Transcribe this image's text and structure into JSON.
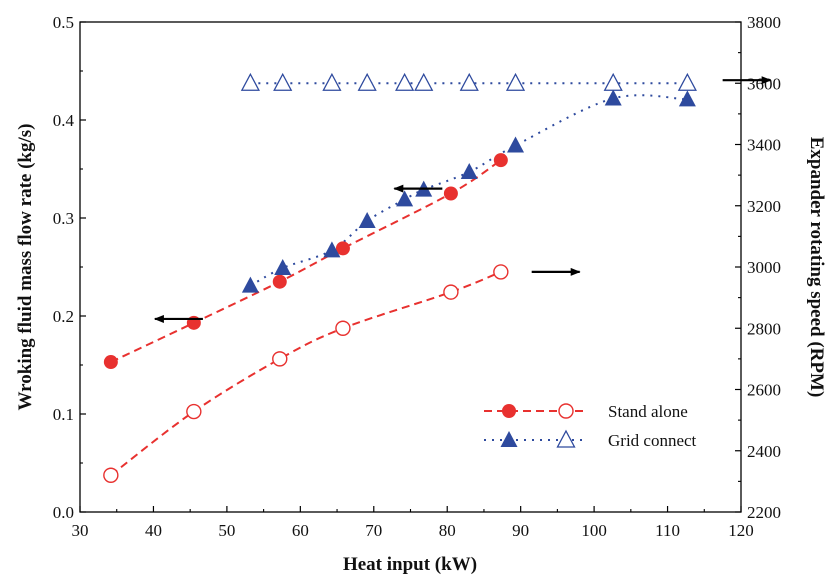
{
  "chart_data": {
    "type": "scatter",
    "xlabel": "Heat input (kW)",
    "ylabel_left": "Wroking fluid mass flow rate (kg/s)",
    "ylabel_right": "Expander rotating speed (RPM)",
    "xlim": [
      30,
      120
    ],
    "ylim_left": [
      0.0,
      0.5
    ],
    "ylim_right": [
      2200,
      3800
    ],
    "x_ticks": [
      "30",
      "40",
      "50",
      "60",
      "70",
      "80",
      "90",
      "100",
      "110",
      "120"
    ],
    "y_left_ticks": [
      "0.0",
      "0.1",
      "0.2",
      "0.3",
      "0.4",
      "0.5"
    ],
    "y_right_ticks": [
      "2200",
      "2400",
      "2600",
      "2800",
      "3000",
      "3200",
      "3400",
      "3600",
      "3800"
    ],
    "grid": false,
    "legend_position": "bottom-right",
    "legend": [
      {
        "label": "Stand alone",
        "line": "dashed",
        "color": "#e8312f"
      },
      {
        "label": "Grid connect",
        "line": "dotted",
        "color": "#2e4a9e"
      }
    ],
    "series": [
      {
        "group": "Stand alone",
        "axis": "left",
        "marker": "filled-circle",
        "color": "#e8312f",
        "line": "dashed",
        "x": [
          34.2,
          45.5,
          57.2,
          65.8,
          80.5,
          87.3
        ],
        "y": [
          0.153,
          0.193,
          0.235,
          0.269,
          0.325,
          0.359
        ]
      },
      {
        "group": "Stand alone",
        "axis": "right",
        "marker": "open-circle",
        "color": "#e8312f",
        "line": "dashed",
        "x": [
          34.2,
          45.5,
          57.2,
          65.8,
          80.5,
          87.3
        ],
        "y": [
          2320,
          2528,
          2700,
          2800,
          2918,
          2984
        ]
      },
      {
        "group": "Grid connect",
        "axis": "left",
        "marker": "filled-triangle",
        "color": "#2e4a9e",
        "line": "dotted",
        "x": [
          53.2,
          57.6,
          64.3,
          69.1,
          74.2,
          76.8,
          83.0,
          89.3,
          102.6,
          112.7
        ],
        "y": [
          0.231,
          0.249,
          0.267,
          0.297,
          0.319,
          0.329,
          0.347,
          0.374,
          0.422,
          0.421
        ]
      },
      {
        "group": "Grid connect",
        "axis": "right",
        "marker": "open-triangle",
        "color": "#2e4a9e",
        "line": "dotted",
        "x": [
          53.2,
          57.6,
          64.3,
          69.1,
          74.2,
          76.8,
          83.0,
          89.3,
          102.6,
          112.7
        ],
        "y": [
          3600,
          3600,
          3600,
          3600,
          3600,
          3600,
          3600,
          3600,
          3600,
          3600
        ]
      }
    ],
    "annotations": [
      {
        "type": "arrow",
        "points_to": "left-axis",
        "x": 40.2,
        "y": 0.197
      },
      {
        "type": "arrow",
        "points_to": "left-axis",
        "x": 72.8,
        "y": 0.33
      },
      {
        "type": "arrow",
        "points_to": "right-axis",
        "x": 91.5,
        "y": 2984
      },
      {
        "type": "arrow",
        "points_to": "right-axis",
        "x": 117.5,
        "y": 3610
      }
    ]
  }
}
